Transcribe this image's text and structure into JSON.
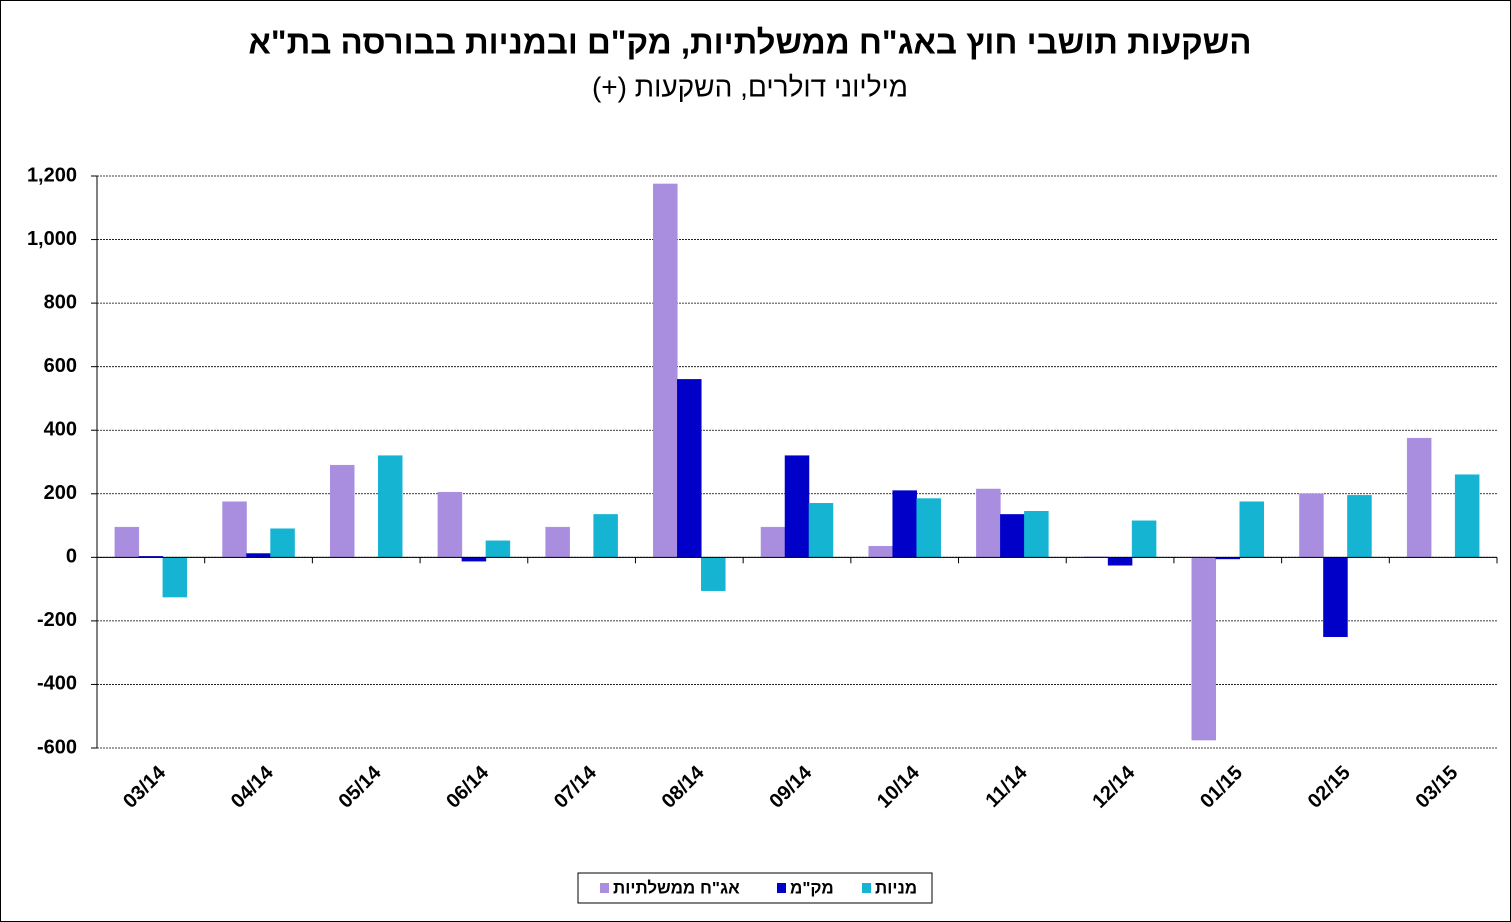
{
  "chart_data": {
    "type": "bar",
    "title": "השקעות תושבי חוץ באג\"ח ממשלתיות, מק\"ם ובמניות בבורסה בת\"א",
    "subtitle": "מיליוני דולרים, השקעות (+)",
    "categories": [
      "03/14",
      "04/14",
      "05/14",
      "06/14",
      "07/14",
      "08/14",
      "09/14",
      "10/14",
      "11/14",
      "12/14",
      "01/15",
      "02/15",
      "03/15"
    ],
    "series": [
      {
        "name": "אג\"ח ממשלתיות",
        "color": "#a98ee0",
        "values": [
          95,
          175,
          290,
          205,
          95,
          1175,
          95,
          35,
          215,
          2,
          -575,
          200,
          375
        ]
      },
      {
        "name": "מק\"מ",
        "color": "#0000c8",
        "values": [
          3,
          12,
          0,
          -12,
          0,
          560,
          320,
          210,
          135,
          -25,
          -5,
          -250,
          0
        ]
      },
      {
        "name": "מניות",
        "color": "#14b4d2",
        "values": [
          -125,
          90,
          320,
          52,
          135,
          -105,
          170,
          185,
          145,
          115,
          175,
          195,
          260
        ]
      }
    ],
    "ylim": [
      -600,
      1200
    ],
    "yticks": [
      -600,
      -400,
      -200,
      0,
      200,
      400,
      600,
      800,
      {
        "value": 1000,
        "label": "1,000"
      },
      {
        "value": 1200,
        "label": "1,200"
      }
    ],
    "grid": true,
    "legend": "bottom"
  }
}
